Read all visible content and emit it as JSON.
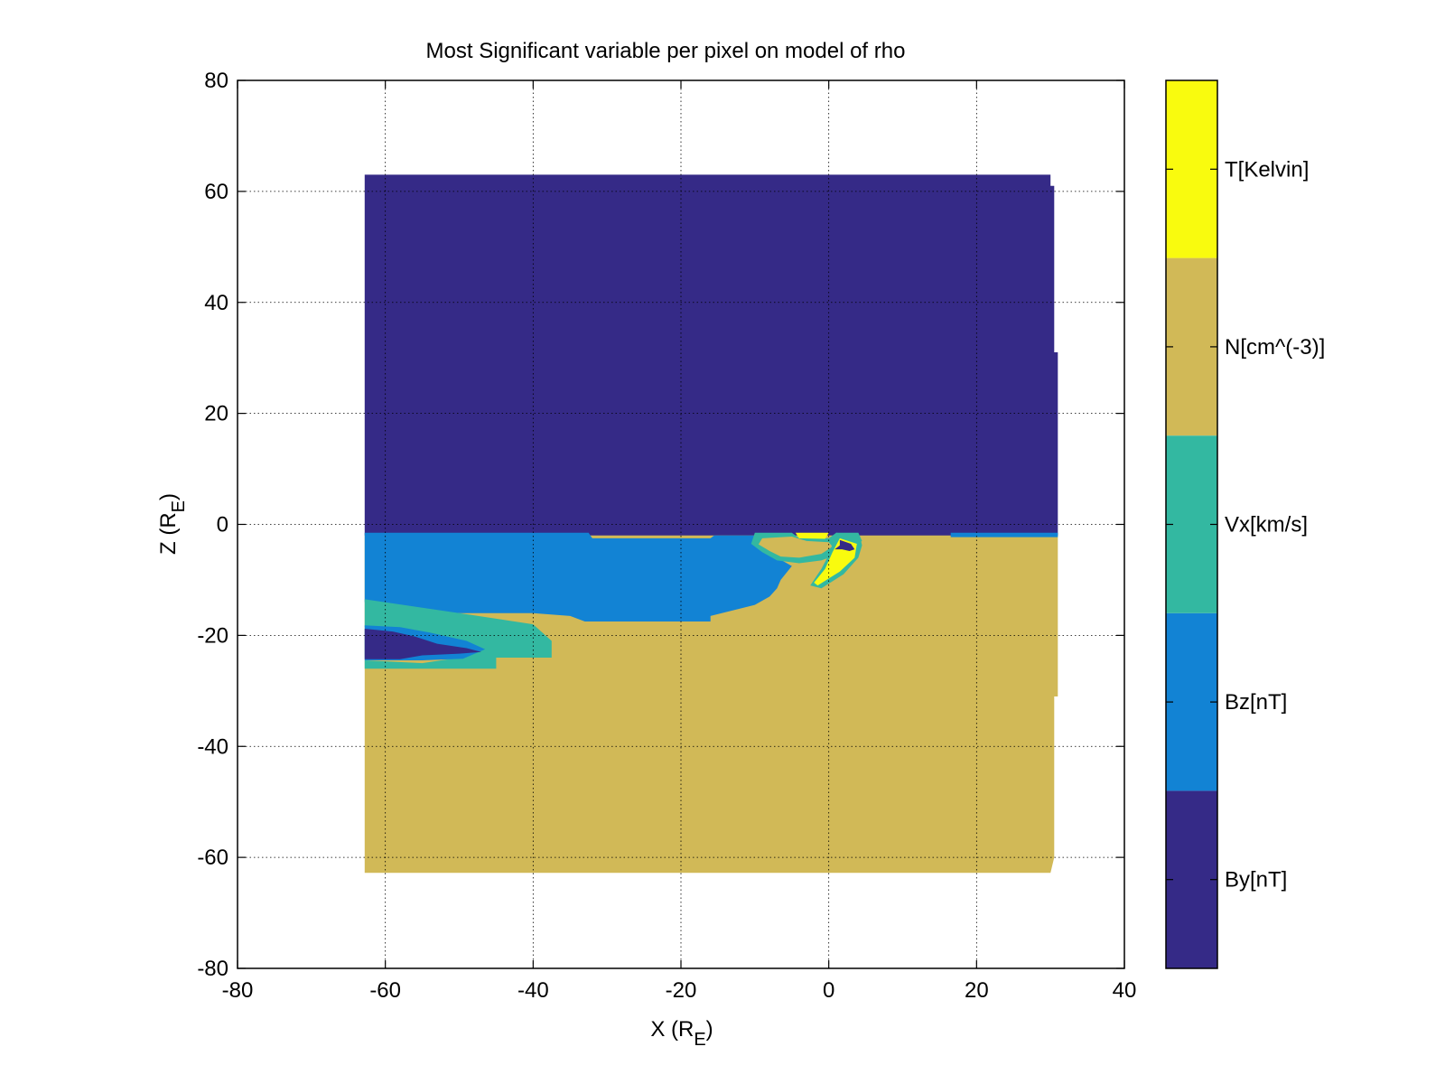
{
  "chart_data": {
    "type": "heatmap",
    "title": "Most Significant variable per pixel on model of rho",
    "xlabel": {
      "main": "X (R",
      "sub": "E",
      "close": ")"
    },
    "ylabel": {
      "main": "Z (R",
      "sub": "E",
      "close": ")"
    },
    "xlim": [
      -80,
      40
    ],
    "ylim": [
      -80,
      80
    ],
    "xticks": [
      -80,
      -60,
      -40,
      -20,
      0,
      20,
      40
    ],
    "yticks": [
      -80,
      -60,
      -40,
      -20,
      0,
      20,
      40,
      60,
      80
    ],
    "grid": true,
    "categories": [
      {
        "label": "By[nT]",
        "color": "#352a87"
      },
      {
        "label": "Bz[nT]",
        "color": "#1283d4"
      },
      {
        "label": "Vx[km/s]",
        "color": "#33b8a1"
      },
      {
        "label": "N[cm^(-3)]",
        "color": "#d1b957"
      },
      {
        "label": "T[Kelvin]",
        "color": "#f9fb0e"
      }
    ],
    "regions": [
      {
        "category": "N[cm^(-3)]",
        "polygon": [
          [
            -62.8,
            -1.5
          ],
          [
            31,
            -1.5
          ],
          [
            31,
            -31
          ],
          [
            30.5,
            -31
          ],
          [
            30.5,
            -60
          ],
          [
            30,
            -62.8
          ],
          [
            -62.8,
            -62.8
          ]
        ]
      },
      {
        "category": "By[nT]",
        "polygon": [
          [
            -62.8,
            63
          ],
          [
            30,
            63
          ],
          [
            30,
            61
          ],
          [
            30.5,
            61
          ],
          [
            30.5,
            31
          ],
          [
            31,
            31
          ],
          [
            31,
            -2
          ],
          [
            -62.8,
            -2
          ]
        ]
      },
      {
        "category": "Bz[nT]",
        "polygon": [
          [
            -62.8,
            -1.5
          ],
          [
            -32.5,
            -1.5
          ],
          [
            -32,
            -2.5
          ],
          [
            -16,
            -2.5
          ],
          [
            -15.5,
            -2
          ],
          [
            -10,
            -2
          ],
          [
            -8,
            -4
          ],
          [
            -7,
            -6
          ],
          [
            -5,
            -7.5
          ],
          [
            -6.5,
            -10
          ],
          [
            -7,
            -11.5
          ],
          [
            -8,
            -13
          ],
          [
            -10,
            -14.5
          ],
          [
            -16,
            -16.5
          ],
          [
            -16,
            -17.5
          ],
          [
            -33,
            -17.5
          ],
          [
            -35,
            -16.5
          ],
          [
            -40,
            -16
          ],
          [
            -45,
            -16
          ],
          [
            -50,
            -16
          ],
          [
            -55,
            -15.5
          ],
          [
            -62.8,
            -14
          ]
        ]
      },
      {
        "category": "Vx[km/s]",
        "polygon": [
          [
            -62.8,
            -13.5
          ],
          [
            -55,
            -15
          ],
          [
            -50,
            -16
          ],
          [
            -45,
            -17
          ],
          [
            -40,
            -18
          ],
          [
            -37.5,
            -21
          ],
          [
            -37.5,
            -24
          ],
          [
            -45,
            -24
          ],
          [
            -45,
            -26
          ],
          [
            -62.8,
            -26
          ],
          [
            -62.8,
            -24.5
          ],
          [
            -55,
            -25
          ],
          [
            -50,
            -24
          ],
          [
            -48,
            -23
          ],
          [
            -51,
            -21
          ],
          [
            -56,
            -19
          ],
          [
            -60,
            -18.5
          ],
          [
            -62.8,
            -18.5
          ]
        ]
      },
      {
        "category": "Bz[nT]",
        "polygon": [
          [
            -62.8,
            -18.2
          ],
          [
            -58,
            -18.5
          ],
          [
            -54,
            -19.5
          ],
          [
            -49,
            -21
          ],
          [
            -46.5,
            -22.5
          ],
          [
            -49.5,
            -24.2
          ],
          [
            -55,
            -24.5
          ],
          [
            -62.8,
            -24.5
          ]
        ]
      },
      {
        "category": "By[nT]",
        "polygon": [
          [
            -62.8,
            -18.8
          ],
          [
            -59,
            -19.3
          ],
          [
            -56,
            -20.2
          ],
          [
            -53,
            -21.5
          ],
          [
            -49,
            -22.3
          ],
          [
            -47,
            -23
          ],
          [
            -50,
            -23.3
          ],
          [
            -55,
            -23.6
          ],
          [
            -58,
            -24.3
          ],
          [
            -62.8,
            -24.3
          ]
        ]
      },
      {
        "category": "Vx[km/s]",
        "polygon": [
          [
            -10,
            -1.5
          ],
          [
            -5,
            -1.5
          ],
          [
            -4,
            -2.5
          ],
          [
            0,
            -2.5
          ],
          [
            1,
            -1.5
          ],
          [
            4,
            -1.5
          ],
          [
            4.5,
            -3
          ],
          [
            2,
            -5
          ],
          [
            -1,
            -6.5
          ],
          [
            -4,
            -7
          ],
          [
            -7,
            -6.5
          ],
          [
            -9,
            -5
          ],
          [
            -10.5,
            -3.5
          ]
        ]
      },
      {
        "category": "N[cm^(-3)]",
        "polygon": [
          [
            -9,
            -2.5
          ],
          [
            -5,
            -2.2
          ],
          [
            -3,
            -3
          ],
          [
            0,
            -3.2
          ],
          [
            0.5,
            -4
          ],
          [
            -1,
            -5.3
          ],
          [
            -4,
            -6
          ],
          [
            -6.5,
            -5.8
          ],
          [
            -8,
            -4.8
          ],
          [
            -9.5,
            -3.6
          ]
        ]
      },
      {
        "category": "T[Kelvin]",
        "polygon": [
          [
            -4.5,
            -1.5
          ],
          [
            0,
            -1.5
          ],
          [
            -0.5,
            -2.6
          ],
          [
            -4,
            -2.5
          ]
        ]
      },
      {
        "category": "Vx[km/s]",
        "polygon": [
          [
            1,
            -1.5
          ],
          [
            4.2,
            -2
          ],
          [
            4.5,
            -3.8
          ],
          [
            4,
            -6
          ],
          [
            2,
            -9
          ],
          [
            -1,
            -11.5
          ],
          [
            -2.5,
            -11
          ],
          [
            -1,
            -8
          ],
          [
            0,
            -5.5
          ]
        ]
      },
      {
        "category": "T[Kelvin]",
        "polygon": [
          [
            1.5,
            -2.5
          ],
          [
            3.8,
            -3.5
          ],
          [
            3.5,
            -6
          ],
          [
            1.5,
            -8.5
          ],
          [
            -1.5,
            -11
          ],
          [
            -2,
            -10.5
          ],
          [
            -0.5,
            -8
          ],
          [
            0.5,
            -5
          ]
        ]
      },
      {
        "category": "By[nT]",
        "polygon": [
          [
            1.5,
            -2.8
          ],
          [
            3,
            -3.5
          ],
          [
            3.5,
            -4.5
          ],
          [
            2.8,
            -4.8
          ],
          [
            1.8,
            -4.5
          ],
          [
            0.8,
            -4.5
          ],
          [
            1.5,
            -3.8
          ]
        ]
      },
      {
        "category": "Bz[nT]",
        "polygon": [
          [
            16.5,
            -1.5
          ],
          [
            31,
            -1.5
          ],
          [
            31,
            -2.3
          ],
          [
            16.5,
            -2.3
          ]
        ]
      }
    ]
  }
}
